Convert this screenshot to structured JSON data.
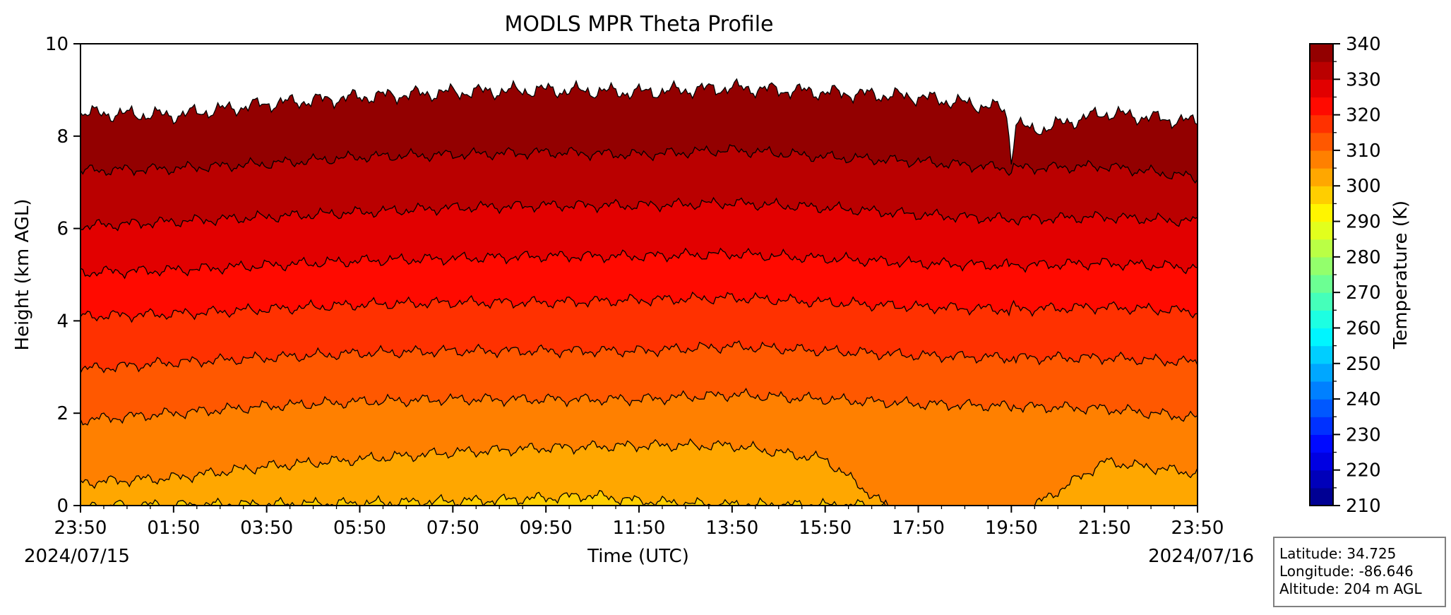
{
  "chart_data": {
    "type": "contour",
    "title": "MODLS MPR Theta Profile",
    "xlabel": "Time (UTC)",
    "ylabel": "Height (km AGL)",
    "ylim": [
      0,
      10
    ],
    "yticks": [
      0,
      2,
      4,
      6,
      8,
      10
    ],
    "xlim_hours": [
      0,
      24
    ],
    "xticks": [
      "23:50",
      "01:50",
      "03:50",
      "05:50",
      "07:50",
      "09:50",
      "11:50",
      "13:50",
      "15:50",
      "17:50",
      "19:50",
      "21:50",
      "23:50"
    ],
    "date_start": "2024/07/15",
    "date_end": "2024/07/16",
    "colorbar": {
      "label": "Temperature (K)",
      "range": [
        210,
        340
      ],
      "step": 5,
      "tick_labels": [
        "210",
        "220",
        "230",
        "240",
        "250",
        "260",
        "270",
        "280",
        "290",
        "300",
        "310",
        "320",
        "330",
        "340"
      ]
    },
    "contour_levels_K": [
      300,
      305,
      310,
      315,
      320,
      325,
      330,
      335
    ],
    "contour_heights_km": [
      {
        "level": 300,
        "points": [
          [
            0,
            0.0
          ],
          [
            3,
            0.02
          ],
          [
            6,
            0.05
          ],
          [
            9,
            0.12
          ],
          [
            11,
            0.22
          ],
          [
            12,
            0.1
          ],
          [
            13.6,
            0.02
          ],
          [
            17.5,
            0.0
          ]
        ]
      },
      {
        "level": 305,
        "points": [
          [
            0,
            0.5
          ],
          [
            2,
            0.6
          ],
          [
            4,
            0.85
          ],
          [
            6,
            1.0
          ],
          [
            8,
            1.15
          ],
          [
            10,
            1.25
          ],
          [
            12,
            1.3
          ],
          [
            14,
            1.3
          ],
          [
            16,
            1.0
          ],
          [
            17.3,
            0.0
          ],
          [
            20.5,
            0.0
          ],
          [
            22,
            0.95
          ],
          [
            24,
            0.7
          ]
        ]
      },
      {
        "level": 310,
        "points": [
          [
            0,
            1.85
          ],
          [
            2,
            2.0
          ],
          [
            4,
            2.15
          ],
          [
            6,
            2.25
          ],
          [
            8,
            2.3
          ],
          [
            10,
            2.3
          ],
          [
            12,
            2.3
          ],
          [
            14,
            2.4
          ],
          [
            16,
            2.3
          ],
          [
            18,
            2.2
          ],
          [
            20,
            2.15
          ],
          [
            22,
            2.1
          ],
          [
            24,
            1.9
          ]
        ]
      },
      {
        "level": 315,
        "points": [
          [
            0,
            2.95
          ],
          [
            2,
            3.1
          ],
          [
            4,
            3.2
          ],
          [
            6,
            3.3
          ],
          [
            8,
            3.35
          ],
          [
            10,
            3.35
          ],
          [
            12,
            3.35
          ],
          [
            14,
            3.45
          ],
          [
            16,
            3.35
          ],
          [
            18,
            3.25
          ],
          [
            20,
            3.2
          ],
          [
            22,
            3.2
          ],
          [
            24,
            3.1
          ]
        ]
      },
      {
        "level": 320,
        "points": [
          [
            0,
            4.1
          ],
          [
            2,
            4.15
          ],
          [
            4,
            4.25
          ],
          [
            6,
            4.35
          ],
          [
            8,
            4.4
          ],
          [
            10,
            4.4
          ],
          [
            12,
            4.45
          ],
          [
            14,
            4.5
          ],
          [
            16,
            4.4
          ],
          [
            18,
            4.3
          ],
          [
            20,
            4.25
          ],
          [
            22,
            4.3
          ],
          [
            24,
            4.2
          ]
        ]
      },
      {
        "level": 325,
        "points": [
          [
            0,
            5.05
          ],
          [
            2,
            5.1
          ],
          [
            4,
            5.2
          ],
          [
            6,
            5.3
          ],
          [
            8,
            5.35
          ],
          [
            10,
            5.4
          ],
          [
            12,
            5.4
          ],
          [
            14,
            5.45
          ],
          [
            16,
            5.35
          ],
          [
            18,
            5.25
          ],
          [
            20,
            5.2
          ],
          [
            22,
            5.25
          ],
          [
            24,
            5.15
          ]
        ]
      },
      {
        "level": 330,
        "points": [
          [
            0,
            6.05
          ],
          [
            2,
            6.15
          ],
          [
            4,
            6.25
          ],
          [
            6,
            6.35
          ],
          [
            8,
            6.45
          ],
          [
            10,
            6.5
          ],
          [
            12,
            6.5
          ],
          [
            14,
            6.55
          ],
          [
            16,
            6.45
          ],
          [
            18,
            6.3
          ],
          [
            20,
            6.2
          ],
          [
            22,
            6.25
          ],
          [
            24,
            6.15
          ]
        ]
      },
      {
        "level": 335,
        "points": [
          [
            0,
            7.25
          ],
          [
            2,
            7.3
          ],
          [
            4,
            7.4
          ],
          [
            6,
            7.55
          ],
          [
            8,
            7.6
          ],
          [
            10,
            7.65
          ],
          [
            12,
            7.6
          ],
          [
            14,
            7.7
          ],
          [
            16,
            7.55
          ],
          [
            18,
            7.45
          ],
          [
            20,
            7.3
          ],
          [
            22,
            7.35
          ],
          [
            24,
            7.1
          ]
        ]
      }
    ],
    "data_top_km": {
      "points": [
        [
          0,
          8.5
        ],
        [
          2,
          8.45
        ],
        [
          4,
          8.7
        ],
        [
          6,
          8.85
        ],
        [
          8,
          8.95
        ],
        [
          10,
          9.0
        ],
        [
          12,
          8.95
        ],
        [
          14,
          9.05
        ],
        [
          16,
          8.95
        ],
        [
          18,
          8.85
        ],
        [
          19.8,
          8.6
        ],
        [
          20.4,
          8.1
        ],
        [
          22,
          8.5
        ],
        [
          24,
          8.3
        ]
      ]
    },
    "spike_hour": 20.0,
    "grid": false
  },
  "info_box": {
    "latitude": "Latitude: 34.725",
    "longitude": "Longitude: -86.646",
    "altitude": "Altitude: 204 m AGL"
  }
}
